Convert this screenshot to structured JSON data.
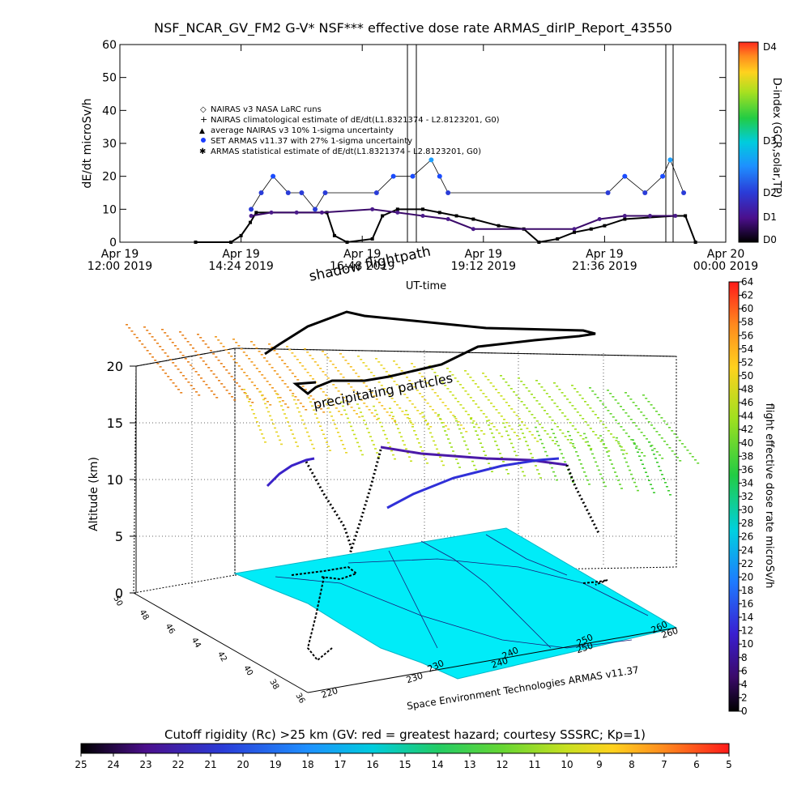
{
  "chart_data": [
    {
      "type": "scatter",
      "title": "NSF_NCAR_GV_FM2 G-V* NSF*** effective dose rate ARMAS_dirIP_Report_43550",
      "xlabel": "UT-time",
      "ylabel": "dE/dt microSv/h",
      "ylim": [
        0,
        60
      ],
      "yticks": [
        "0",
        "10",
        "20",
        "30",
        "40",
        "50",
        "60"
      ],
      "xticks": [
        {
          "t": 12.0,
          "line1": "Apr 19",
          "line2": "12:00 2019"
        },
        {
          "t": 14.4,
          "line1": "Apr 19",
          "line2": "14:24 2019"
        },
        {
          "t": 16.8,
          "line1": "Apr 19",
          "line2": "16:48 2019"
        },
        {
          "t": 19.2,
          "line1": "Apr 19",
          "line2": "19:12 2019"
        },
        {
          "t": 21.6,
          "line1": "Apr 19",
          "line2": "21:36 2019"
        },
        {
          "t": 24.0,
          "line1": "Apr 20",
          "line2": "00:00 2019"
        }
      ],
      "xlim": [
        "2019-04-19 12:00",
        "2019-04-20 00:00"
      ],
      "legend": {
        "placement": "top-center",
        "entries": [
          {
            "symbol": "◇",
            "label": "NAIRAS v3 NASA LaRC runs"
          },
          {
            "symbol": "+",
            "label": "NAIRAS climatological estimate of dE/dt(L1.8321374 - L2.8123201, G0)"
          },
          {
            "symbol": "▲",
            "label": "average NAIRAS v3 10% 1-sigma uncertainty"
          },
          {
            "symbol": "●",
            "label": "SET ARMAS v11.37 with 27% 1-sigma uncertainty"
          },
          {
            "symbol": "✱",
            "label": "ARMAS statistical estimate of dE/dt(L1.8321374 - L2.8123201, G0)"
          }
        ]
      },
      "colorbar": {
        "label": "D-index (GCR,solar,TP)",
        "ticks": [
          "D4",
          "D3",
          "D2",
          "D1",
          "D0"
        ]
      },
      "series": [
        {
          "name": "NAIRAS climatological estimate of dE/dt(L1.8321374 - L2.8123201, G0)",
          "x": [
            "2019-04-19 13:30",
            "2019-04-19 14:12",
            "2019-04-19 14:24",
            "2019-04-19 14:35",
            "2019-04-19 14:42",
            "2019-04-19 16:06",
            "2019-04-19 16:15",
            "2019-04-19 16:30",
            "2019-04-19 17:00",
            "2019-04-19 17:12",
            "2019-04-19 17:30",
            "2019-04-19 18:00",
            "2019-04-19 18:20",
            "2019-04-19 18:40",
            "2019-04-19 19:00",
            "2019-04-19 19:30",
            "2019-04-19 20:00",
            "2019-04-19 20:18",
            "2019-04-19 20:40",
            "2019-04-19 21:00",
            "2019-04-19 21:20",
            "2019-04-19 21:36",
            "2019-04-19 22:00",
            "2019-04-19 23:00",
            "2019-04-19 23:12",
            "2019-04-19 23:24"
          ],
          "values": [
            0,
            0,
            2,
            6,
            9,
            9,
            2,
            0,
            1,
            8,
            10,
            10,
            9,
            8,
            7,
            5,
            4,
            0,
            1,
            3,
            4,
            5,
            7,
            8,
            8,
            0
          ]
        },
        {
          "name": "SET ARMAS v11.37 with 27% 1-sigma uncertainty",
          "x": [
            "2019-04-19 14:36",
            "2019-04-19 14:48",
            "2019-04-19 15:02",
            "2019-04-19 15:20",
            "2019-04-19 15:36",
            "2019-04-19 15:52",
            "2019-04-19 16:04",
            "2019-04-19 17:05",
            "2019-04-19 17:25",
            "2019-04-19 17:48",
            "2019-04-19 18:10",
            "2019-04-19 18:20",
            "2019-04-19 18:30",
            "2019-04-19 21:40",
            "2019-04-19 22:00",
            "2019-04-19 22:24",
            "2019-04-19 22:45",
            "2019-04-19 22:54",
            "2019-04-19 23:10"
          ],
          "values": [
            10,
            15,
            20,
            15,
            15,
            10,
            15,
            15,
            20,
            20,
            25,
            20,
            15,
            15,
            20,
            15,
            20,
            25,
            15
          ]
        },
        {
          "name": "ARMAS statistical estimate of dE/dt(L1.8321374 - L2.8123201, G0)",
          "x": [
            "2019-04-19 14:36",
            "2019-04-19 15:00",
            "2019-04-19 15:30",
            "2019-04-19 16:00",
            "2019-04-19 17:00",
            "2019-04-19 17:30",
            "2019-04-19 18:00",
            "2019-04-19 18:30",
            "2019-04-19 19:00",
            "2019-04-19 21:00",
            "2019-04-19 21:30",
            "2019-04-19 22:00",
            "2019-04-19 22:30",
            "2019-04-19 23:00"
          ],
          "values": [
            8,
            9,
            9,
            9,
            10,
            9,
            8,
            7,
            4,
            4,
            7,
            8,
            8,
            8
          ]
        }
      ]
    },
    {
      "type": "scatter",
      "xlabel": "",
      "ylabel": "Altitude (km)",
      "zlim": [
        0,
        20
      ],
      "zticks": [
        "0",
        "5",
        "10",
        "15",
        "20"
      ],
      "lon_ticks": [
        "220",
        "230",
        "240",
        "250",
        "260"
      ],
      "lon_ticks_back": [
        "230",
        "240",
        "250",
        "260"
      ],
      "lat_ticks": [
        "50",
        "48",
        "46",
        "44",
        "42",
        "40",
        "38",
        "36"
      ],
      "annotations": [
        "shadow flightpath",
        "precipitating particles",
        "Space Environment Technologies ARMAS v11.37"
      ],
      "colorbar": {
        "label": "flight effective dose rate microSv/h",
        "range": [
          0,
          64
        ],
        "ticks": [
          "0",
          "2",
          "4",
          "6",
          "8",
          "10",
          "12",
          "14",
          "16",
          "18",
          "20",
          "22",
          "24",
          "26",
          "28",
          "30",
          "32",
          "34",
          "36",
          "38",
          "40",
          "42",
          "44",
          "46",
          "48",
          "50",
          "52",
          "54",
          "56",
          "58",
          "60",
          "62",
          "64"
        ]
      }
    },
    {
      "type": "heatmap",
      "title": "Cutoff rigidity (Rc) >25 km (GV: red = greatest hazard; courtesy SSSRC; Kp=1)",
      "colorbar_ticks": [
        "25",
        "24",
        "23",
        "22",
        "21",
        "20",
        "19",
        "18",
        "17",
        "16",
        "15",
        "14",
        "13",
        "12",
        "11",
        "10",
        "9",
        "8",
        "7",
        "6",
        "5"
      ],
      "range": [
        25,
        5
      ]
    }
  ]
}
